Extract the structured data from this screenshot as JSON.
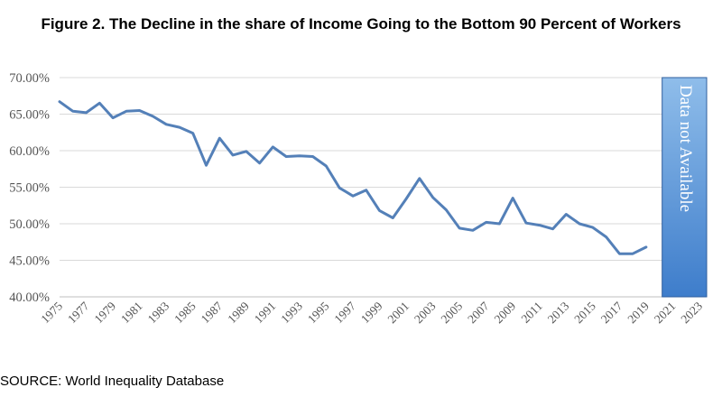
{
  "chart_data": {
    "type": "line",
    "title": "Figure 2. The Decline in the share of Income Going to the Bottom 90 Percent of Workers",
    "xlabel": "",
    "ylabel": "",
    "ylim": [
      40,
      70
    ],
    "y_ticks": [
      "40.00%",
      "45.00%",
      "50.00%",
      "55.00%",
      "60.00%",
      "65.00%",
      "70.00%"
    ],
    "x_tick_labels": [
      "1975",
      "1977",
      "1979",
      "1981",
      "1983",
      "1985",
      "1987",
      "1989",
      "1991",
      "1993",
      "1995",
      "1997",
      "1999",
      "2001",
      "2003",
      "2005",
      "2007",
      "2009",
      "2011",
      "2013",
      "2015",
      "2017",
      "2019",
      "2021",
      "2023"
    ],
    "x_range": [
      1975,
      2023
    ],
    "grid": true,
    "line_color": "#5480B8",
    "series": [
      {
        "x": [
          1975,
          1976,
          1977,
          1978,
          1979,
          1980,
          1981,
          1982,
          1983,
          1984,
          1985,
          1986,
          1987,
          1988,
          1989,
          1990,
          1991,
          1992,
          1993,
          1994,
          1995,
          1996,
          1997,
          1998,
          1999,
          2000,
          2001,
          2002,
          2003,
          2004,
          2005,
          2006,
          2007,
          2008,
          2009,
          2010,
          2011,
          2012,
          2013,
          2014,
          2015,
          2016,
          2017,
          2018,
          2019
        ],
        "values": [
          66.7,
          65.4,
          65.2,
          66.5,
          64.5,
          65.4,
          65.5,
          64.7,
          63.6,
          63.2,
          62.4,
          58.0,
          61.7,
          59.4,
          59.9,
          58.3,
          60.5,
          59.2,
          59.3,
          59.2,
          57.9,
          54.9,
          53.8,
          54.6,
          51.8,
          50.8,
          53.4,
          56.2,
          53.6,
          51.9,
          49.4,
          49.1,
          50.2,
          50.0,
          53.5,
          50.1,
          49.8,
          49.3,
          51.3,
          50.0,
          49.5,
          48.2,
          45.9,
          45.9,
          46.8
        ]
      }
    ],
    "annotation": {
      "text": "Data not Available",
      "x_from": 2020,
      "x_to": 2023,
      "y_from": 40,
      "y_to": 70,
      "color_top": "#8FBDEA",
      "color_bottom": "#3E7DCB",
      "border": "#2F5F9E"
    }
  },
  "source": "SOURCE: World Inequality Database"
}
